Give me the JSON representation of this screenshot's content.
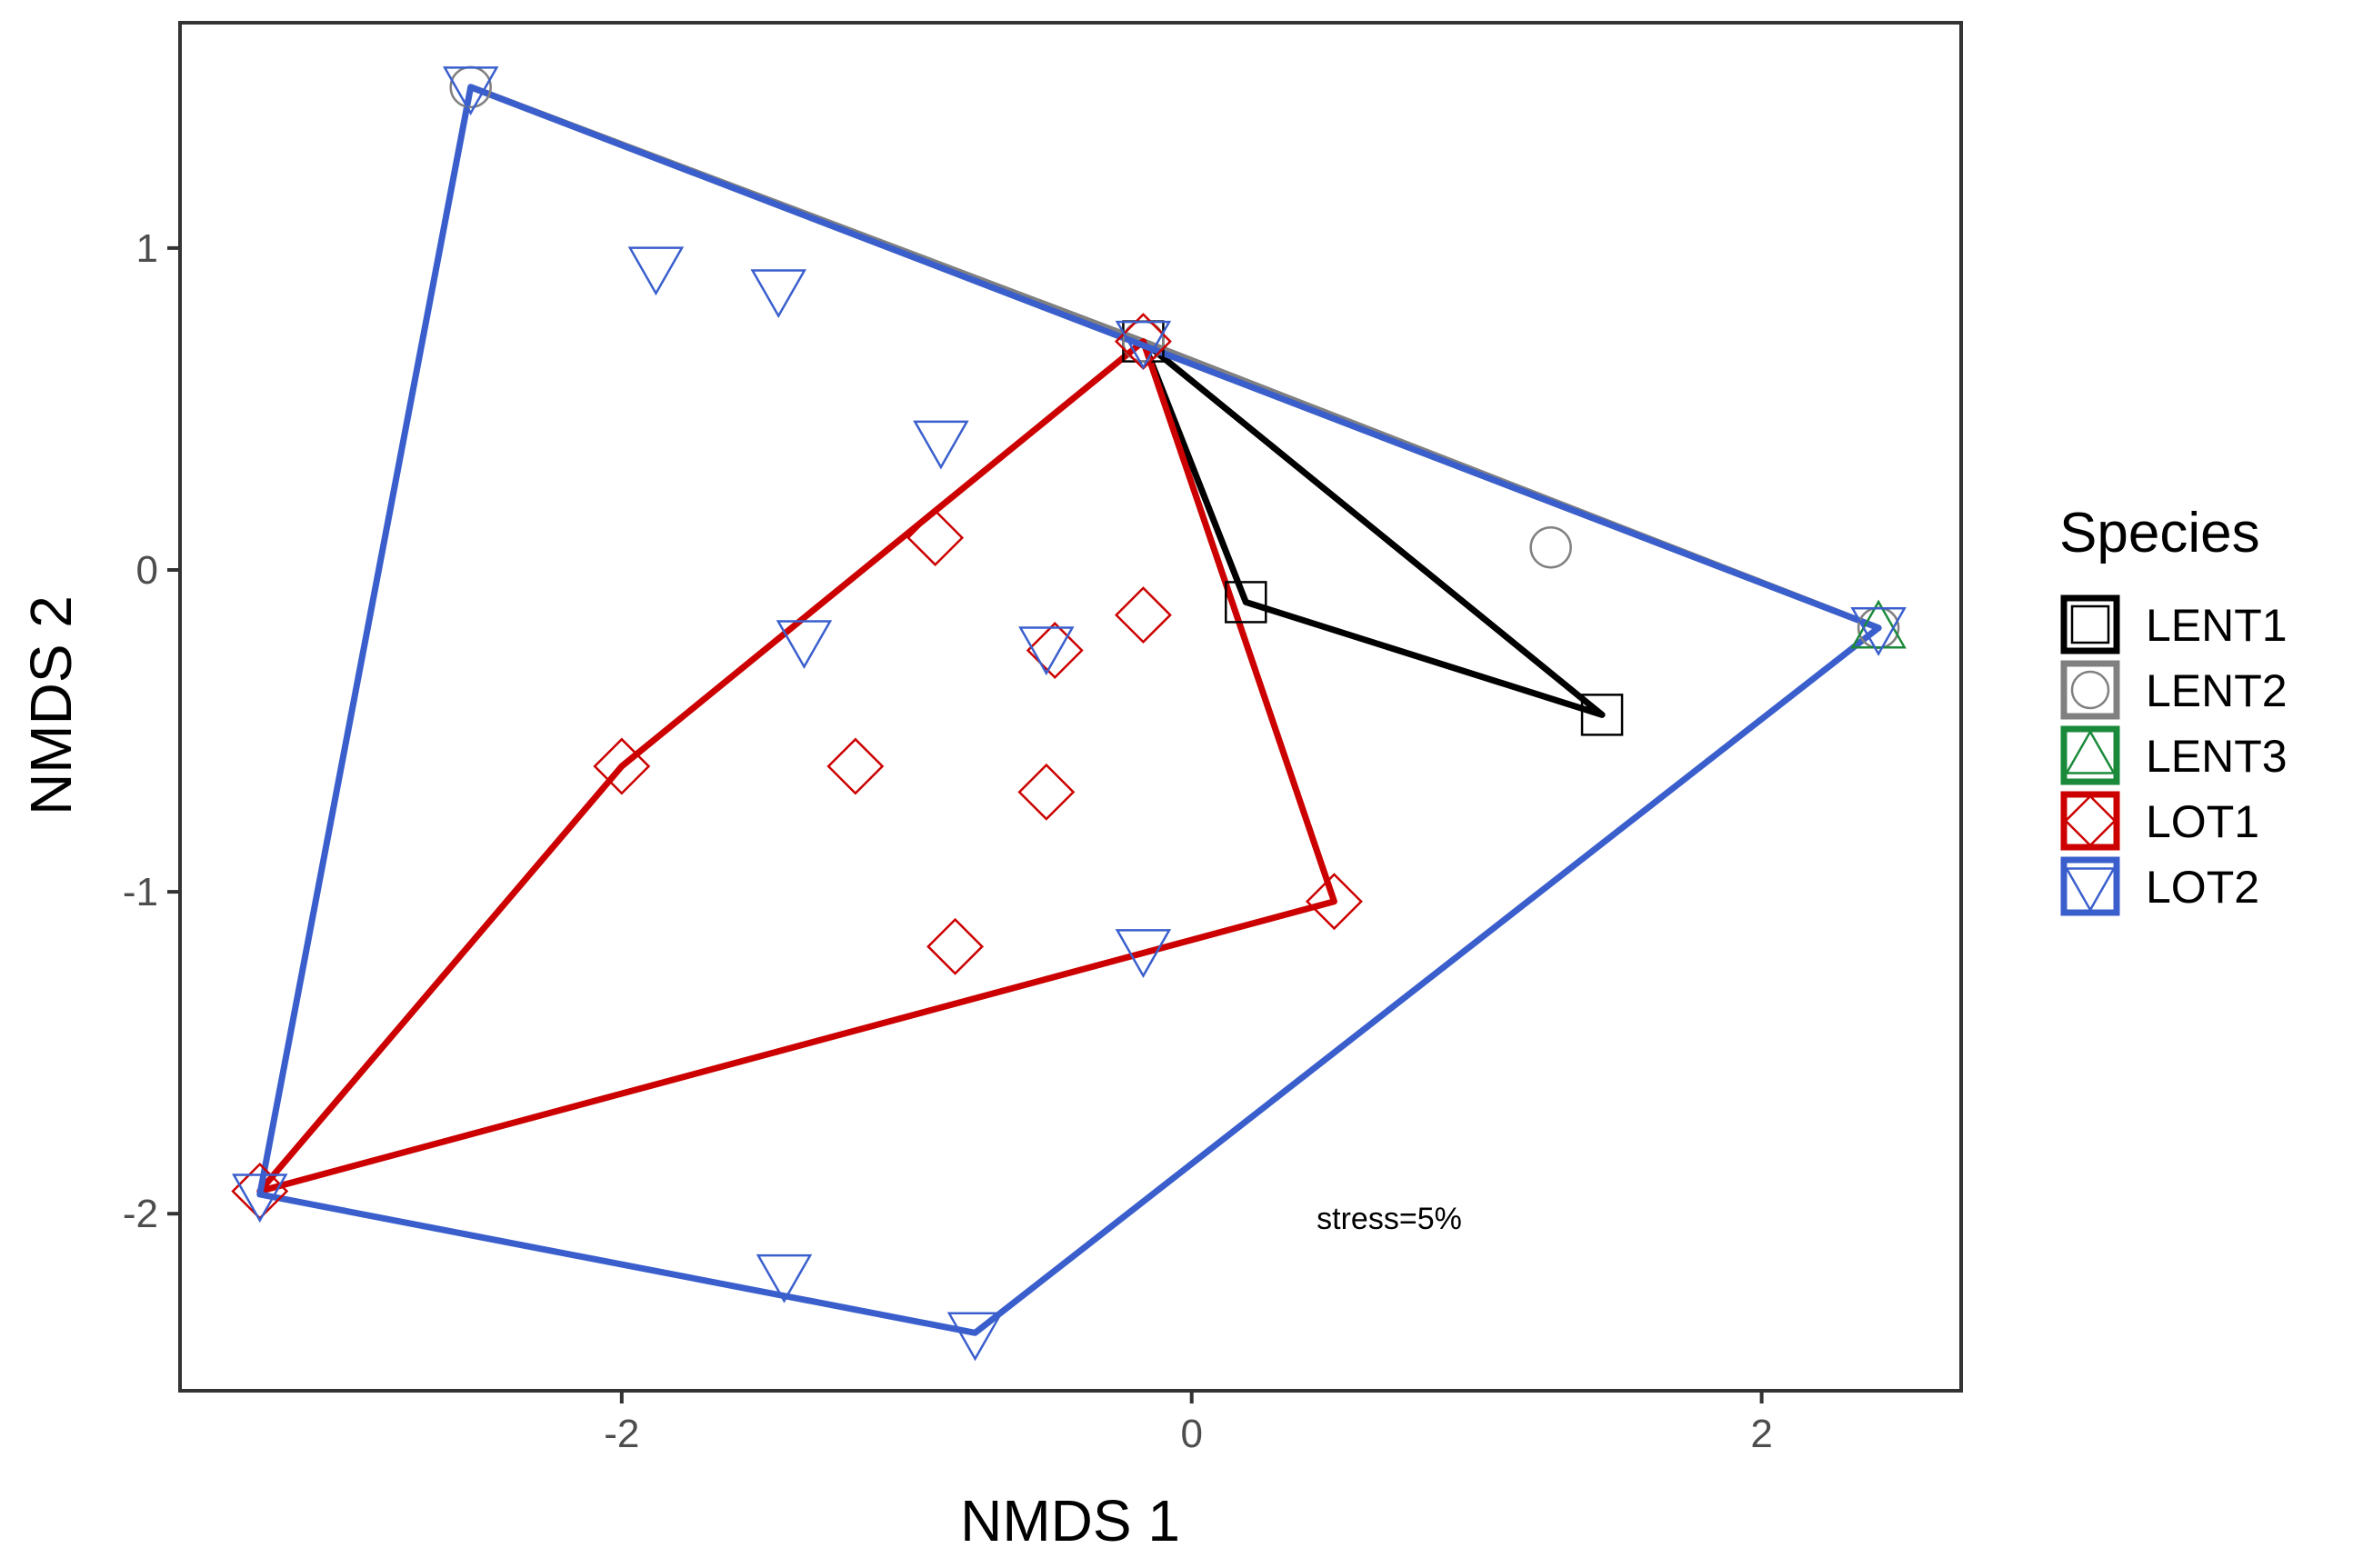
{
  "chart_data": {
    "type": "scatter",
    "title": "",
    "xlabel": "NMDS 1",
    "ylabel": "NMDS 2",
    "xlim": [
      -3.55,
      2.7
    ],
    "ylim": [
      -2.55,
      1.7
    ],
    "xticks": [
      -2,
      0,
      2
    ],
    "yticks": [
      -2,
      -1,
      0,
      1
    ],
    "xtick_labels": [
      "-2",
      "0",
      "2"
    ],
    "ytick_labels": [
      "-2",
      "-1",
      "0",
      "1"
    ],
    "grid": false,
    "legend": {
      "title": "Species",
      "position": "right"
    },
    "annotation": "stress=5%",
    "series": [
      {
        "name": "LENT1",
        "color": "#000000",
        "marker": "square",
        "points": [
          [
            -0.17,
            0.71
          ],
          [
            0.19,
            -0.1
          ],
          [
            1.44,
            -0.45
          ]
        ],
        "hull": [
          [
            -0.17,
            0.71
          ],
          [
            0.19,
            -0.1
          ],
          [
            1.44,
            -0.45
          ]
        ]
      },
      {
        "name": "LENT2",
        "color": "#808080",
        "marker": "circle",
        "points": [
          [
            -2.53,
            1.5
          ],
          [
            -0.17,
            0.71
          ],
          [
            1.26,
            0.07
          ],
          [
            2.41,
            -0.18
          ]
        ],
        "hull": [
          [
            -2.53,
            1.5
          ],
          [
            2.41,
            -0.18
          ],
          [
            -0.17,
            0.71
          ]
        ]
      },
      {
        "name": "LENT3",
        "color": "#1a8a3a",
        "marker": "triangle-up",
        "points": [
          [
            2.41,
            -0.18
          ]
        ],
        "hull": []
      },
      {
        "name": "LOT1",
        "color": "#cc0000",
        "marker": "diamond",
        "points": [
          [
            -0.17,
            0.71
          ],
          [
            -0.9,
            0.1
          ],
          [
            -0.17,
            -0.14
          ],
          [
            -0.48,
            -0.25
          ],
          [
            -2.0,
            -0.61
          ],
          [
            -1.18,
            -0.61
          ],
          [
            -0.51,
            -0.69
          ],
          [
            -0.83,
            -1.17
          ],
          [
            0.5,
            -1.03
          ],
          [
            -3.27,
            -1.93
          ]
        ],
        "hull": [
          [
            -0.17,
            0.71
          ],
          [
            0.5,
            -1.03
          ],
          [
            -3.27,
            -1.93
          ],
          [
            -2.0,
            -0.61
          ]
        ]
      },
      {
        "name": "LOT2",
        "color": "#3a5fcd",
        "marker": "triangle-down",
        "points": [
          [
            -2.53,
            1.5
          ],
          [
            -1.88,
            0.94
          ],
          [
            -1.45,
            0.87
          ],
          [
            -0.88,
            0.4
          ],
          [
            -0.17,
            0.71
          ],
          [
            -1.36,
            -0.22
          ],
          [
            -0.51,
            -0.24
          ],
          [
            -0.17,
            -1.18
          ],
          [
            -1.43,
            -2.19
          ],
          [
            -0.76,
            -2.37
          ],
          [
            -3.27,
            -1.94
          ],
          [
            2.41,
            -0.18
          ]
        ],
        "hull": [
          [
            -2.53,
            1.5
          ],
          [
            2.41,
            -0.18
          ],
          [
            -0.76,
            -2.37
          ],
          [
            -3.27,
            -1.94
          ]
        ]
      }
    ]
  }
}
